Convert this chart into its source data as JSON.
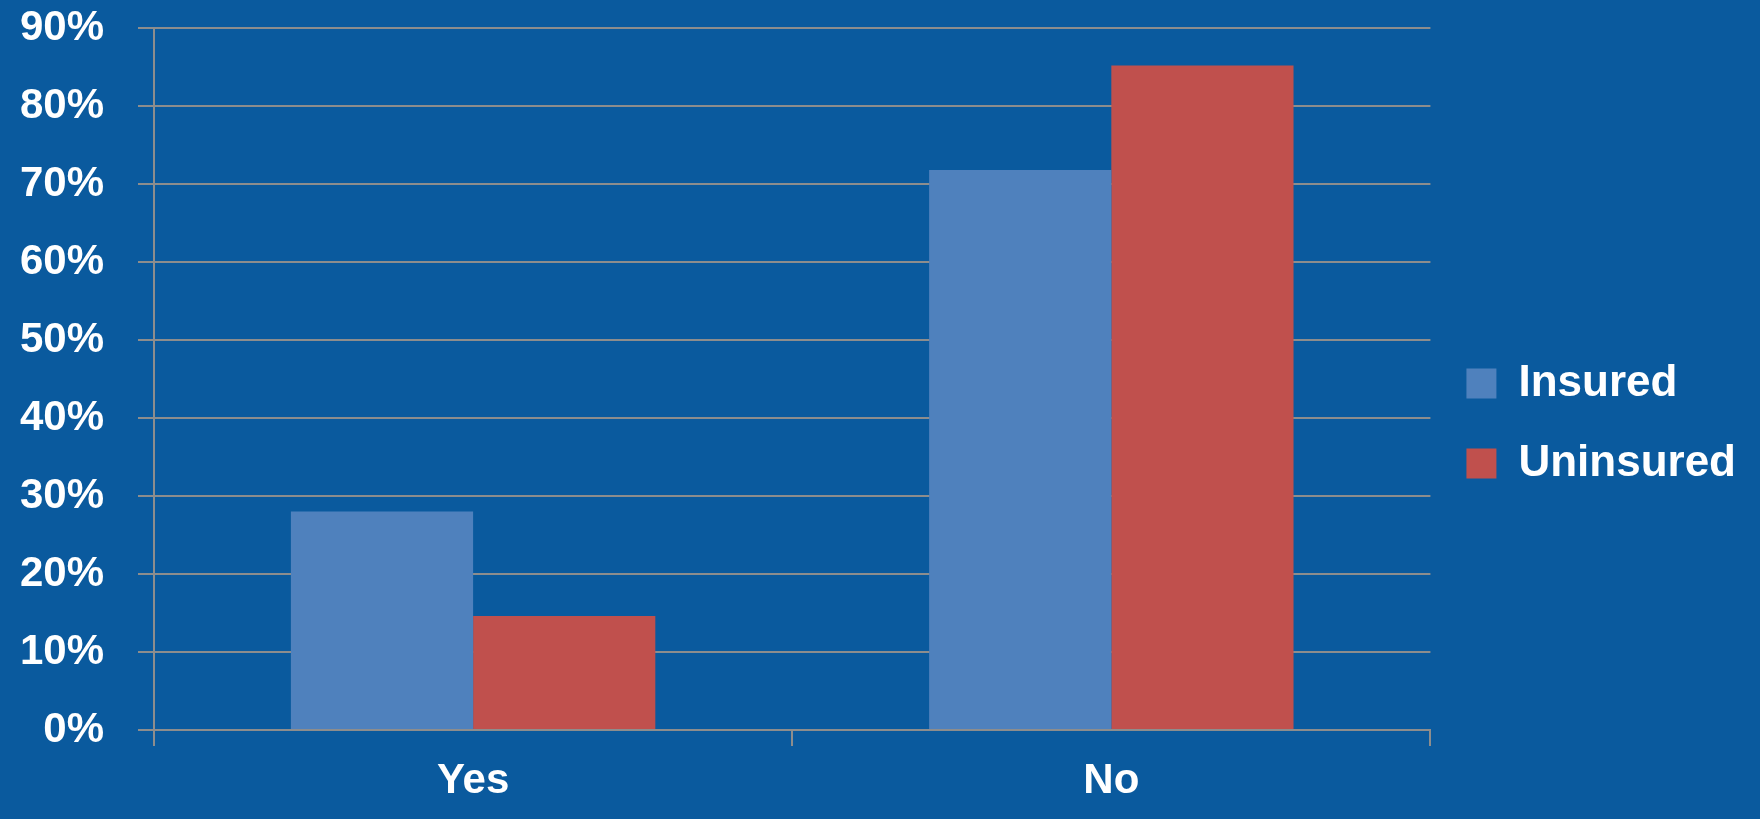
{
  "chart_data": {
    "type": "bar",
    "categories": [
      "Yes",
      "No"
    ],
    "series": [
      {
        "name": "Insured",
        "color": "#4f81bd",
        "values": [
          28,
          71.8
        ]
      },
      {
        "name": "Uninsured",
        "color": "#c0504d",
        "values": [
          14.6,
          85.2
        ]
      }
    ],
    "ylim": [
      0,
      90
    ],
    "yticks": [
      {
        "value": 0,
        "label": "0%"
      },
      {
        "value": 10,
        "label": "10%"
      },
      {
        "value": 20,
        "label": "20%"
      },
      {
        "value": 30,
        "label": "30%"
      },
      {
        "value": 40,
        "label": "40%"
      },
      {
        "value": 50,
        "label": "50%"
      },
      {
        "value": 60,
        "label": "60%"
      },
      {
        "value": 70,
        "label": "70%"
      },
      {
        "value": 80,
        "label": "80%"
      },
      {
        "value": 90,
        "label": "90%"
      }
    ],
    "grid": "y",
    "legend": "right"
  }
}
